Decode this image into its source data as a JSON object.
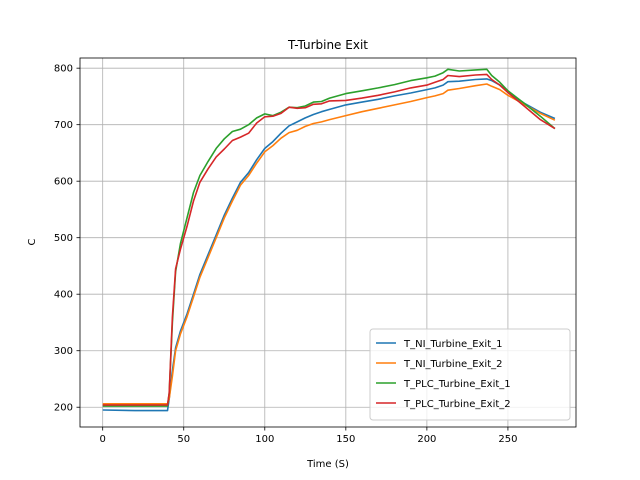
{
  "chart_data": {
    "type": "line",
    "title": "T-Turbine Exit",
    "xlabel": "Time (S)",
    "ylabel": "C",
    "xlim": [
      -14,
      292
    ],
    "ylim": [
      165,
      818
    ],
    "xticks": [
      0,
      50,
      100,
      150,
      200,
      250
    ],
    "yticks": [
      200,
      300,
      400,
      500,
      600,
      700,
      800
    ],
    "grid": true,
    "legend_position": "lower-right",
    "series": [
      {
        "name": "T_NI_Turbine_Exit_1",
        "color": "#1f77b4",
        "points": [
          [
            0,
            195
          ],
          [
            20,
            194
          ],
          [
            40,
            194
          ],
          [
            41,
            215
          ],
          [
            43,
            265
          ],
          [
            45,
            305
          ],
          [
            48,
            335
          ],
          [
            52,
            365
          ],
          [
            56,
            400
          ],
          [
            60,
            435
          ],
          [
            65,
            470
          ],
          [
            70,
            505
          ],
          [
            75,
            540
          ],
          [
            80,
            570
          ],
          [
            85,
            598
          ],
          [
            90,
            615
          ],
          [
            95,
            638
          ],
          [
            100,
            658
          ],
          [
            105,
            670
          ],
          [
            110,
            685
          ],
          [
            115,
            698
          ],
          [
            120,
            705
          ],
          [
            125,
            712
          ],
          [
            130,
            718
          ],
          [
            135,
            723
          ],
          [
            140,
            727
          ],
          [
            150,
            735
          ],
          [
            160,
            740
          ],
          [
            170,
            745
          ],
          [
            180,
            751
          ],
          [
            190,
            756
          ],
          [
            200,
            762
          ],
          [
            205,
            765
          ],
          [
            210,
            770
          ],
          [
            213,
            776
          ],
          [
            220,
            777
          ],
          [
            230,
            780
          ],
          [
            237,
            781
          ],
          [
            240,
            778
          ],
          [
            245,
            770
          ],
          [
            250,
            758
          ],
          [
            260,
            738
          ],
          [
            270,
            722
          ],
          [
            279,
            711
          ]
        ]
      },
      {
        "name": "T_NI_Turbine_Exit_2",
        "color": "#ff7f0e",
        "points": [
          [
            0,
            206
          ],
          [
            20,
            206
          ],
          [
            40,
            206
          ],
          [
            41,
            215
          ],
          [
            43,
            255
          ],
          [
            45,
            300
          ],
          [
            48,
            330
          ],
          [
            52,
            360
          ],
          [
            56,
            395
          ],
          [
            60,
            430
          ],
          [
            65,
            465
          ],
          [
            70,
            500
          ],
          [
            75,
            535
          ],
          [
            80,
            565
          ],
          [
            85,
            593
          ],
          [
            90,
            610
          ],
          [
            95,
            632
          ],
          [
            100,
            652
          ],
          [
            105,
            663
          ],
          [
            110,
            676
          ],
          [
            115,
            686
          ],
          [
            120,
            690
          ],
          [
            125,
            697
          ],
          [
            130,
            702
          ],
          [
            135,
            705
          ],
          [
            140,
            709
          ],
          [
            150,
            716
          ],
          [
            160,
            723
          ],
          [
            170,
            729
          ],
          [
            180,
            735
          ],
          [
            190,
            741
          ],
          [
            200,
            748
          ],
          [
            205,
            751
          ],
          [
            210,
            755
          ],
          [
            213,
            761
          ],
          [
            220,
            764
          ],
          [
            230,
            769
          ],
          [
            237,
            772
          ],
          [
            240,
            768
          ],
          [
            245,
            762
          ],
          [
            250,
            752
          ],
          [
            260,
            736
          ],
          [
            270,
            720
          ],
          [
            279,
            708
          ]
        ]
      },
      {
        "name": "T_PLC_Turbine_Exit_1",
        "color": "#2ca02c",
        "points": [
          [
            0,
            202
          ],
          [
            20,
            202
          ],
          [
            40,
            202
          ],
          [
            41,
            225
          ],
          [
            43,
            350
          ],
          [
            45,
            440
          ],
          [
            48,
            490
          ],
          [
            52,
            535
          ],
          [
            56,
            580
          ],
          [
            60,
            610
          ],
          [
            65,
            635
          ],
          [
            70,
            658
          ],
          [
            75,
            675
          ],
          [
            80,
            688
          ],
          [
            85,
            692
          ],
          [
            90,
            700
          ],
          [
            95,
            712
          ],
          [
            100,
            719
          ],
          [
            105,
            716
          ],
          [
            110,
            722
          ],
          [
            115,
            731
          ],
          [
            120,
            730
          ],
          [
            125,
            733
          ],
          [
            130,
            740
          ],
          [
            135,
            741
          ],
          [
            140,
            747
          ],
          [
            150,
            755
          ],
          [
            160,
            760
          ],
          [
            170,
            765
          ],
          [
            180,
            771
          ],
          [
            190,
            778
          ],
          [
            200,
            783
          ],
          [
            205,
            786
          ],
          [
            210,
            792
          ],
          [
            213,
            798
          ],
          [
            220,
            795
          ],
          [
            230,
            797
          ],
          [
            237,
            798
          ],
          [
            240,
            787
          ],
          [
            245,
            775
          ],
          [
            250,
            760
          ],
          [
            260,
            738
          ],
          [
            270,
            715
          ],
          [
            279,
            693
          ]
        ]
      },
      {
        "name": "T_PLC_Turbine_Exit_2",
        "color": "#d62728",
        "points": [
          [
            0,
            204
          ],
          [
            20,
            204
          ],
          [
            40,
            204
          ],
          [
            41,
            225
          ],
          [
            43,
            360
          ],
          [
            45,
            445
          ],
          [
            48,
            480
          ],
          [
            52,
            520
          ],
          [
            56,
            565
          ],
          [
            60,
            598
          ],
          [
            65,
            622
          ],
          [
            70,
            643
          ],
          [
            75,
            657
          ],
          [
            80,
            672
          ],
          [
            85,
            678
          ],
          [
            90,
            685
          ],
          [
            95,
            703
          ],
          [
            100,
            714
          ],
          [
            105,
            715
          ],
          [
            110,
            720
          ],
          [
            115,
            731
          ],
          [
            120,
            729
          ],
          [
            125,
            730
          ],
          [
            130,
            736
          ],
          [
            135,
            737
          ],
          [
            140,
            742
          ],
          [
            150,
            743
          ],
          [
            160,
            747
          ],
          [
            170,
            752
          ],
          [
            180,
            758
          ],
          [
            190,
            765
          ],
          [
            200,
            770
          ],
          [
            205,
            775
          ],
          [
            210,
            780
          ],
          [
            213,
            787
          ],
          [
            220,
            785
          ],
          [
            230,
            788
          ],
          [
            237,
            789
          ],
          [
            240,
            780
          ],
          [
            245,
            770
          ],
          [
            250,
            757
          ],
          [
            260,
            733
          ],
          [
            270,
            709
          ],
          [
            279,
            693
          ]
        ]
      }
    ]
  }
}
